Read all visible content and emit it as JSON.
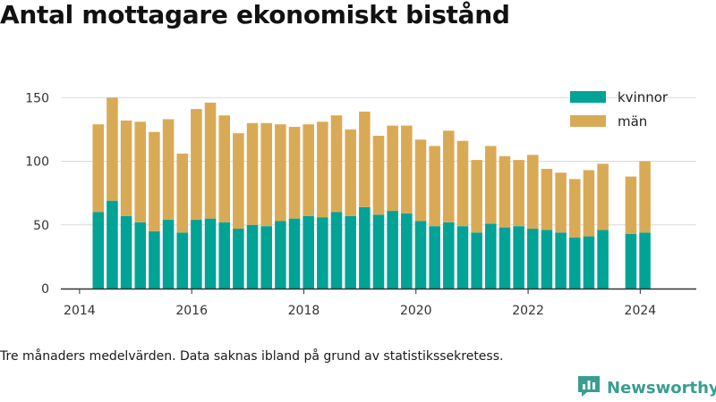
{
  "title": "Antal mottagare ekonomiskt bistånd",
  "caption": "Tre månaders medelvärden. Data saknas ibland på grund av statistikssekretess.",
  "brand": {
    "name": "Newsworthy",
    "icon": "newsworthy-logo-icon",
    "color": "#3a9d93"
  },
  "chart_data": {
    "type": "bar",
    "stacked": true,
    "x": [
      "2014-05",
      "2014-08",
      "2014-11",
      "2015-02",
      "2015-05",
      "2015-08",
      "2015-11",
      "2016-02",
      "2016-05",
      "2016-08",
      "2016-11",
      "2017-02",
      "2017-05",
      "2017-08",
      "2017-11",
      "2018-02",
      "2018-05",
      "2018-08",
      "2018-11",
      "2019-02",
      "2019-05",
      "2019-08",
      "2019-11",
      "2020-02",
      "2020-05",
      "2020-08",
      "2020-11",
      "2021-02",
      "2021-05",
      "2021-08",
      "2021-11",
      "2022-02",
      "2022-05",
      "2022-08",
      "2022-11",
      "2023-02",
      "2023-05",
      "2023-11",
      "2024-02"
    ],
    "series": [
      {
        "name": "kvinnor",
        "color": "#00a396",
        "values": [
          60,
          69,
          57,
          52,
          45,
          54,
          44,
          54,
          55,
          52,
          47,
          50,
          49,
          53,
          55,
          57,
          56,
          60,
          57,
          64,
          58,
          61,
          59,
          53,
          49,
          52,
          49,
          44,
          51,
          48,
          49,
          47,
          46,
          44,
          40,
          41,
          46,
          43,
          44
        ]
      },
      {
        "name": "män",
        "color": "#d9aa56",
        "values": [
          69,
          81,
          75,
          79,
          78,
          79,
          62,
          87,
          91,
          84,
          75,
          80,
          81,
          76,
          72,
          72,
          75,
          76,
          68,
          75,
          62,
          67,
          69,
          64,
          63,
          72,
          67,
          57,
          61,
          56,
          52,
          58,
          48,
          47,
          46,
          52,
          52,
          45,
          56
        ]
      }
    ],
    "xticks": [
      "2014",
      "2016",
      "2018",
      "2020",
      "2022",
      "2024"
    ],
    "yticks": [
      0,
      50,
      100,
      150
    ],
    "ylim": [
      0,
      160
    ],
    "xlim": [
      "2013-09",
      "2025-01"
    ],
    "grid": "horizontal",
    "legend": "top-right",
    "xlabel": "",
    "ylabel": ""
  }
}
